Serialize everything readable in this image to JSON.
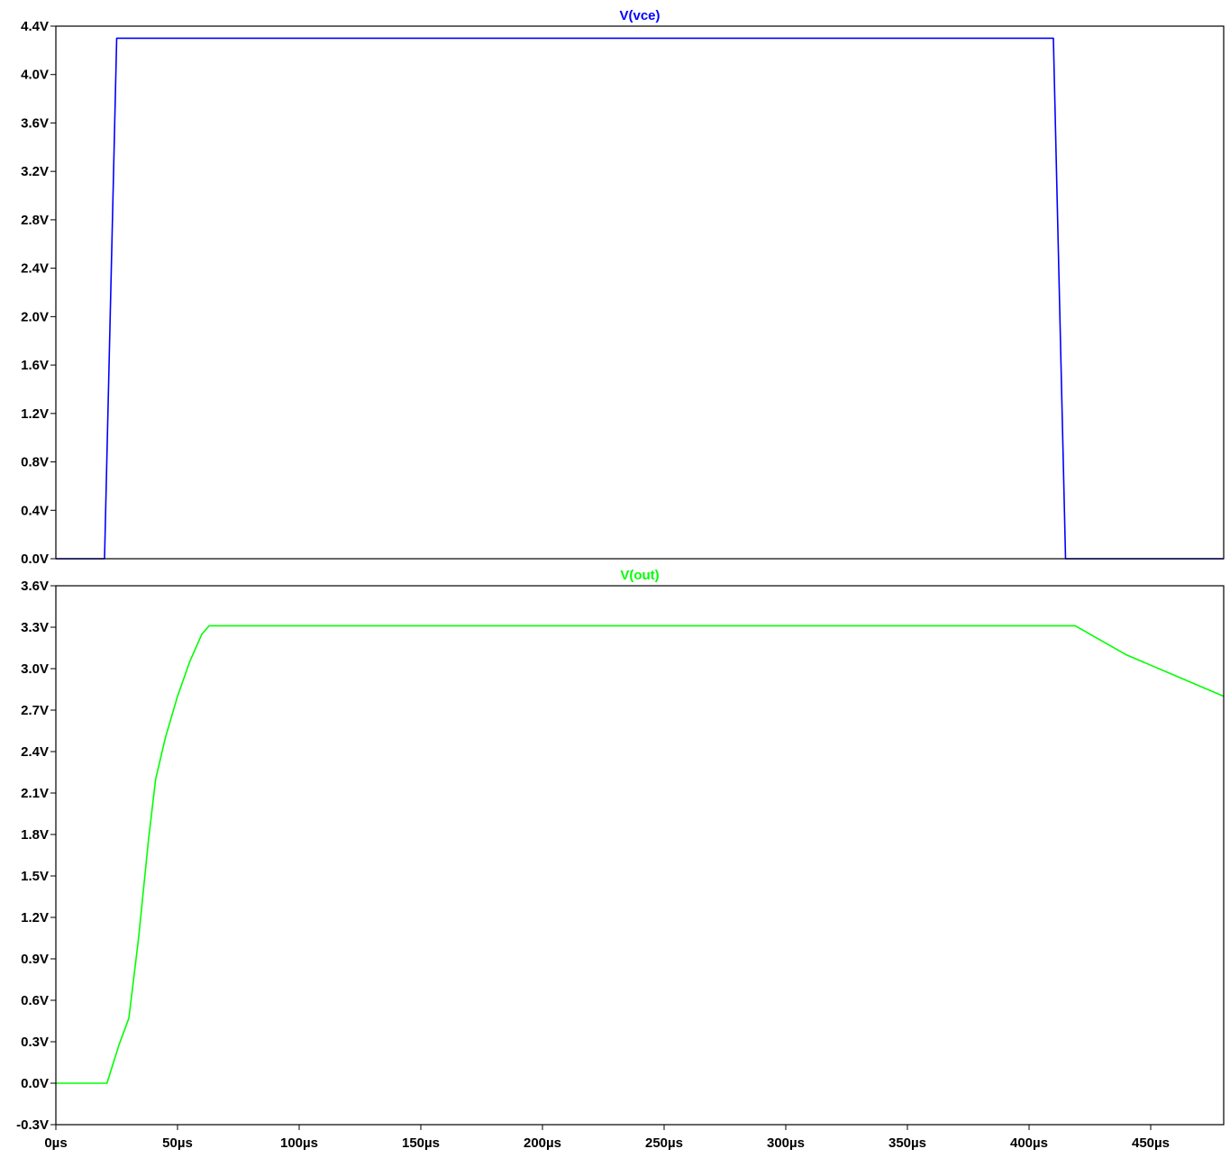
{
  "chart_data": [
    {
      "type": "line",
      "title": "V(vce)",
      "color": "#0000ff",
      "xlim": [
        0,
        480
      ],
      "ylim": [
        0,
        4.4
      ],
      "yticks": [
        0.0,
        0.4,
        0.8,
        1.2,
        1.6,
        2.0,
        2.4,
        2.8,
        3.2,
        3.6,
        4.0,
        4.4
      ],
      "ytick_labels": [
        "0.0V",
        "0.4V",
        "0.8V",
        "1.2V",
        "1.6V",
        "2.0V",
        "2.4V",
        "2.8V",
        "3.2V",
        "3.6V",
        "4.0V",
        "4.4V"
      ],
      "grid": false,
      "series": [
        {
          "name": "V(vce)",
          "x": [
            0,
            20,
            25,
            410,
            415,
            480
          ],
          "y": [
            0.0,
            0.0,
            4.3,
            4.3,
            0.0,
            0.0
          ]
        }
      ]
    },
    {
      "type": "line",
      "title": "V(out)",
      "color": "#00ff00",
      "xlim": [
        0,
        480
      ],
      "ylim": [
        -0.3,
        3.6
      ],
      "yticks": [
        -0.3,
        0.0,
        0.3,
        0.6,
        0.9,
        1.2,
        1.5,
        1.8,
        2.1,
        2.4,
        2.7,
        3.0,
        3.3,
        3.6
      ],
      "ytick_labels": [
        "-0.3V",
        "0.0V",
        "0.3V",
        "0.6V",
        "0.9V",
        "1.2V",
        "1.5V",
        "1.8V",
        "2.1V",
        "2.4V",
        "2.7V",
        "3.0V",
        "3.3V",
        "3.6V"
      ],
      "xticks": [
        0,
        50,
        100,
        150,
        200,
        250,
        300,
        350,
        400,
        450
      ],
      "xtick_labels": [
        "0µs",
        "50µs",
        "100µs",
        "150µs",
        "200µs",
        "250µs",
        "300µs",
        "350µs",
        "400µs",
        "450µs"
      ],
      "grid": false,
      "series": [
        {
          "name": "V(out)",
          "x": [
            0,
            21,
            26,
            30,
            34,
            38,
            41,
            45,
            50,
            55,
            60,
            63,
            419,
            440,
            460,
            480
          ],
          "y": [
            0.0,
            0.0,
            0.28,
            0.47,
            1.05,
            1.75,
            2.2,
            2.5,
            2.8,
            3.05,
            3.25,
            3.31,
            3.31,
            3.1,
            2.95,
            2.8
          ]
        }
      ]
    }
  ]
}
